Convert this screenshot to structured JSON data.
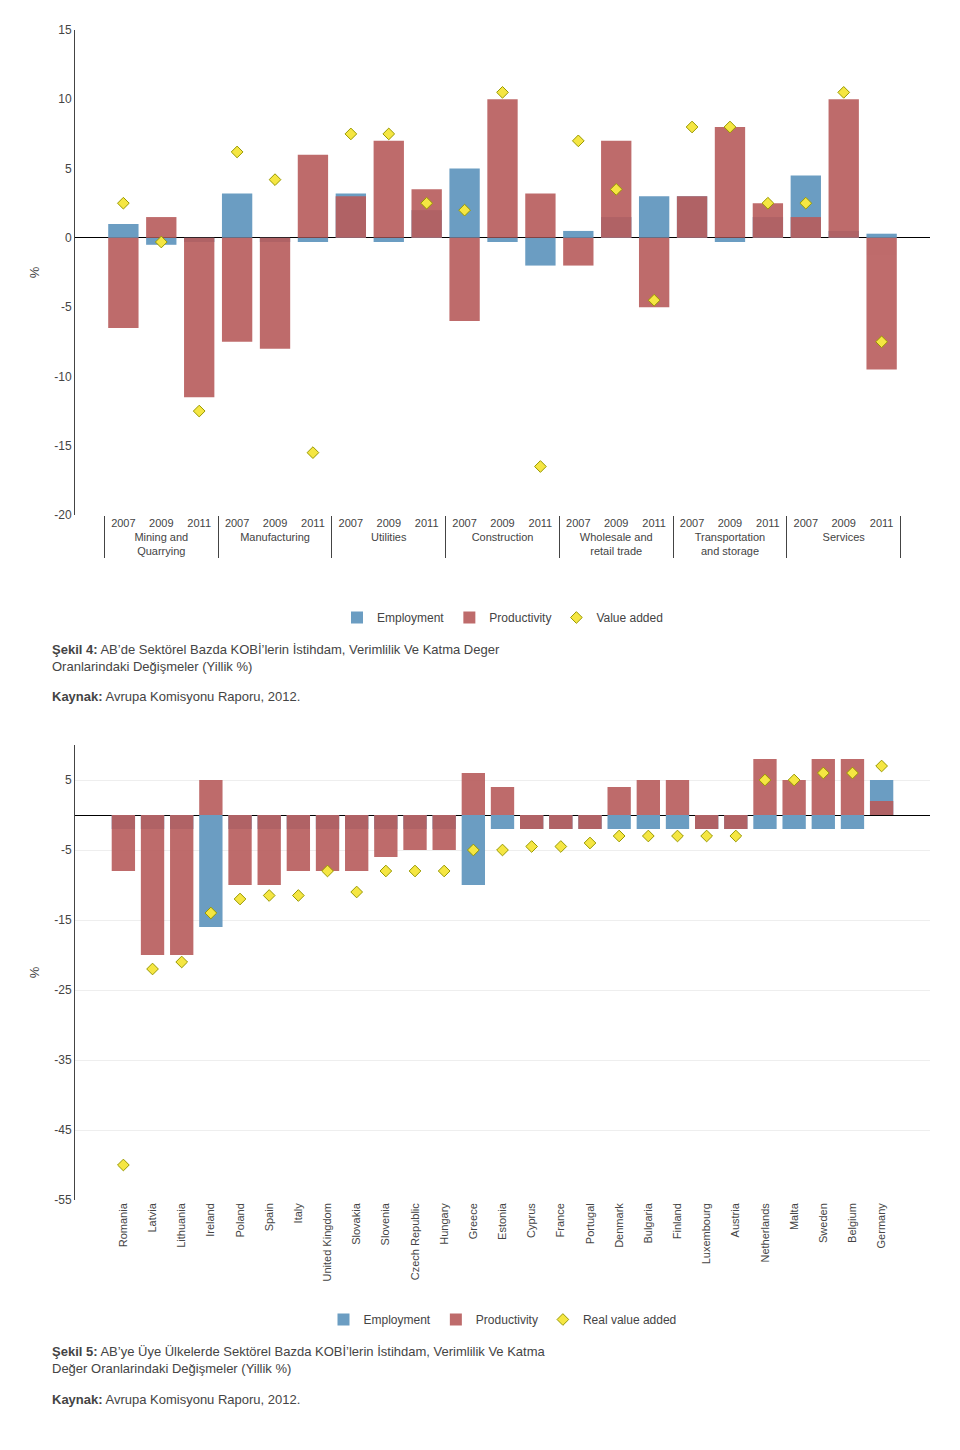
{
  "chart_data": [
    {
      "type": "bar",
      "y_label": "%",
      "categories": [
        [
          "Mining and\nQuarrying",
          "2007"
        ],
        [
          "Mining and\nQuarrying",
          "2009"
        ],
        [
          "Mining and\nQuarrying",
          "2011"
        ],
        [
          "Manufacturing",
          "2007"
        ],
        [
          "Manufacturing",
          "2009"
        ],
        [
          "Manufacturing",
          "2011"
        ],
        [
          "Utilities",
          "2007"
        ],
        [
          "Utilities",
          "2009"
        ],
        [
          "Utilities",
          "2011"
        ],
        [
          "Construction",
          "2007"
        ],
        [
          "Construction",
          "2009"
        ],
        [
          "Construction",
          "2011"
        ],
        [
          "Wholesale and\nretail trade",
          "2007"
        ],
        [
          "Wholesale and\nretail trade",
          "2009"
        ],
        [
          "Wholesale and\nretail trade",
          "2011"
        ],
        [
          "Transportation\nand storage",
          "2007"
        ],
        [
          "Transportation\nand storage",
          "2009"
        ],
        [
          "Transportation\nand storage",
          "2011"
        ],
        [
          "Services",
          "2007"
        ],
        [
          "Services",
          "2009"
        ],
        [
          "Services",
          "2011"
        ]
      ],
      "series": [
        {
          "name": "Employment",
          "type": "bar",
          "color": "#6b9dc2",
          "values": [
            1.0,
            -0.5,
            -0.3,
            3.2,
            -0.3,
            -0.3,
            3.2,
            -0.3,
            2.0,
            5.0,
            -0.3,
            -2.0,
            0.5,
            1.5,
            3.0,
            3.0,
            -0.3,
            1.5,
            4.5,
            0.5,
            0.3
          ]
        },
        {
          "name": "Productivity",
          "type": "bar",
          "color": "#b85c5c",
          "values": [
            -6.5,
            1.5,
            -11.5,
            -7.5,
            -8.0,
            6.0,
            3.0,
            7.0,
            3.5,
            -6.0,
            10.0,
            3.2,
            -2.0,
            7.0,
            -5.0,
            3.0,
            8.0,
            2.5,
            1.5,
            10.0,
            -9.5
          ]
        },
        {
          "name": "Value added",
          "type": "scatter",
          "marker": "diamond",
          "color": "#f5e642",
          "values": [
            2.5,
            -0.3,
            -12.5,
            6.2,
            4.2,
            -15.5,
            7.5,
            7.5,
            2.5,
            2.0,
            10.5,
            -16.5,
            7.0,
            3.5,
            -4.5,
            8.0,
            8.0,
            2.5,
            2.5,
            10.5,
            -7.5
          ]
        }
      ],
      "ylim": [
        -20,
        15
      ],
      "yticks": [
        -20,
        -15,
        -10,
        -5,
        0,
        5,
        10,
        15
      ],
      "grid": false,
      "legend": "bottom",
      "annotations": [
        "Şekil 4: AB’de Sektörel Bazda KOBİ’lerin İstihdam, Verimlilik Ve Katma Deger\nOranlarindaki Değişmeler (Yillik %)",
        "Kaynak: Avrupa Komisyonu Raporu, 2012."
      ]
    },
    {
      "type": "bar",
      "y_label": "%",
      "categories": [
        "Romania",
        "Latvia",
        "Lithuania",
        "Ireland",
        "Poland",
        "Spain",
        "Italy",
        "United Kingdom",
        "Slovakia",
        "Slovenia",
        "Czech Republic",
        "Hungary",
        "Greece",
        "Estonia",
        "Cyprus",
        "France",
        "Portugal",
        "Denmark",
        "Bulgaria",
        "Finland",
        "Luxembourg",
        "Austria",
        "Netherlands",
        "Malta",
        "Sweden",
        "Belgium",
        "Germany"
      ],
      "series": [
        {
          "name": "Employment",
          "type": "bar",
          "color": "#6b9dc2",
          "values": [
            -2.0,
            -2.0,
            -2.0,
            -16.0,
            -2.0,
            -2.0,
            -2.0,
            -2.0,
            -2.0,
            -2.0,
            -2.0,
            -2.0,
            -10.0,
            -2.0,
            -2.0,
            -2.0,
            -2.0,
            -2.0,
            -2.0,
            -2.0,
            -2.0,
            -2.0,
            -2.0,
            -2.0,
            -2.0,
            -2.0,
            5.0
          ]
        },
        {
          "name": "Productivity",
          "type": "bar",
          "color": "#b85c5c",
          "values": [
            -8.0,
            -20.0,
            -20.0,
            5.0,
            -10.0,
            -10.0,
            -8.0,
            -8.0,
            -8.0,
            -6.0,
            -5.0,
            -5.0,
            6.0,
            4.0,
            -2.0,
            -2.0,
            -2.0,
            4.0,
            5.0,
            5.0,
            -2.0,
            -2.0,
            8.0,
            5.0,
            8.0,
            8.0,
            2.0
          ]
        },
        {
          "name": "Real value added",
          "type": "scatter",
          "marker": "diamond",
          "color": "#f5e642",
          "values": [
            -50.0,
            -22.0,
            -21.0,
            -14.0,
            -12.0,
            -11.5,
            -11.5,
            -8.0,
            -11.0,
            -8.0,
            -8.0,
            -8.0,
            -5.0,
            -5.0,
            -4.5,
            -4.5,
            -4.0,
            -3.0,
            -3.0,
            -3.0,
            -3.0,
            -3.0,
            5.0,
            5.0,
            6.0,
            6.0,
            7.0
          ]
        }
      ],
      "ylim": [
        -55,
        10
      ],
      "yticks": [
        -55,
        -45,
        -35,
        -25,
        -15,
        -5,
        5
      ],
      "grid": true,
      "legend": "bottom",
      "annotations": [
        "Şekil 5: AB’ye Üye Ülkelerde Sektörel Bazda KOBİ’lerin İstihdam, Verimlilik Ve Katma\nDeğer Oranlarindaki Değişmeler (Yillik %)",
        "Kaynak: Avrupa Komisyonu Raporu, 2012."
      ]
    }
  ]
}
